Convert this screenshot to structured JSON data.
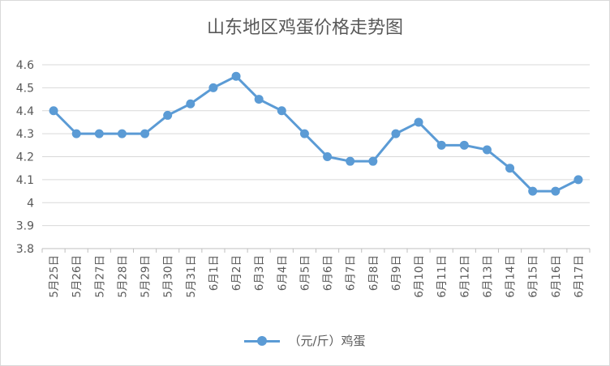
{
  "chart_data": {
    "type": "line",
    "title": "山东地区鸡蛋价格走势图",
    "categories": [
      "5月25日",
      "5月26日",
      "5月27日",
      "5月28日",
      "5月29日",
      "5月30日",
      "5月31日",
      "6月1日",
      "6月2日",
      "6月3日",
      "6月4日",
      "6月5日",
      "6月6日",
      "6月7日",
      "6月8日",
      "6月9日",
      "6月10日",
      "6月11日",
      "6月12日",
      "6月13日",
      "6月14日",
      "6月15日",
      "6月16日",
      "6月17日"
    ],
    "series": [
      {
        "name": "（元/斤）鸡蛋",
        "color": "#5b9bd5",
        "values": [
          4.4,
          4.3,
          4.3,
          4.3,
          4.3,
          4.38,
          4.43,
          4.5,
          4.55,
          4.45,
          4.4,
          4.3,
          4.2,
          4.18,
          4.18,
          4.3,
          4.35,
          4.25,
          4.25,
          4.23,
          4.15,
          4.05,
          4.05,
          4.1
        ]
      }
    ],
    "ylim": [
      3.8,
      4.6
    ],
    "yticks": [
      "3.8",
      "3.9",
      "4",
      "4.1",
      "4.2",
      "4.3",
      "4.4",
      "4.5",
      "4.6"
    ],
    "grid": true,
    "legend_position": "bottom",
    "xlabel": "",
    "ylabel": ""
  }
}
